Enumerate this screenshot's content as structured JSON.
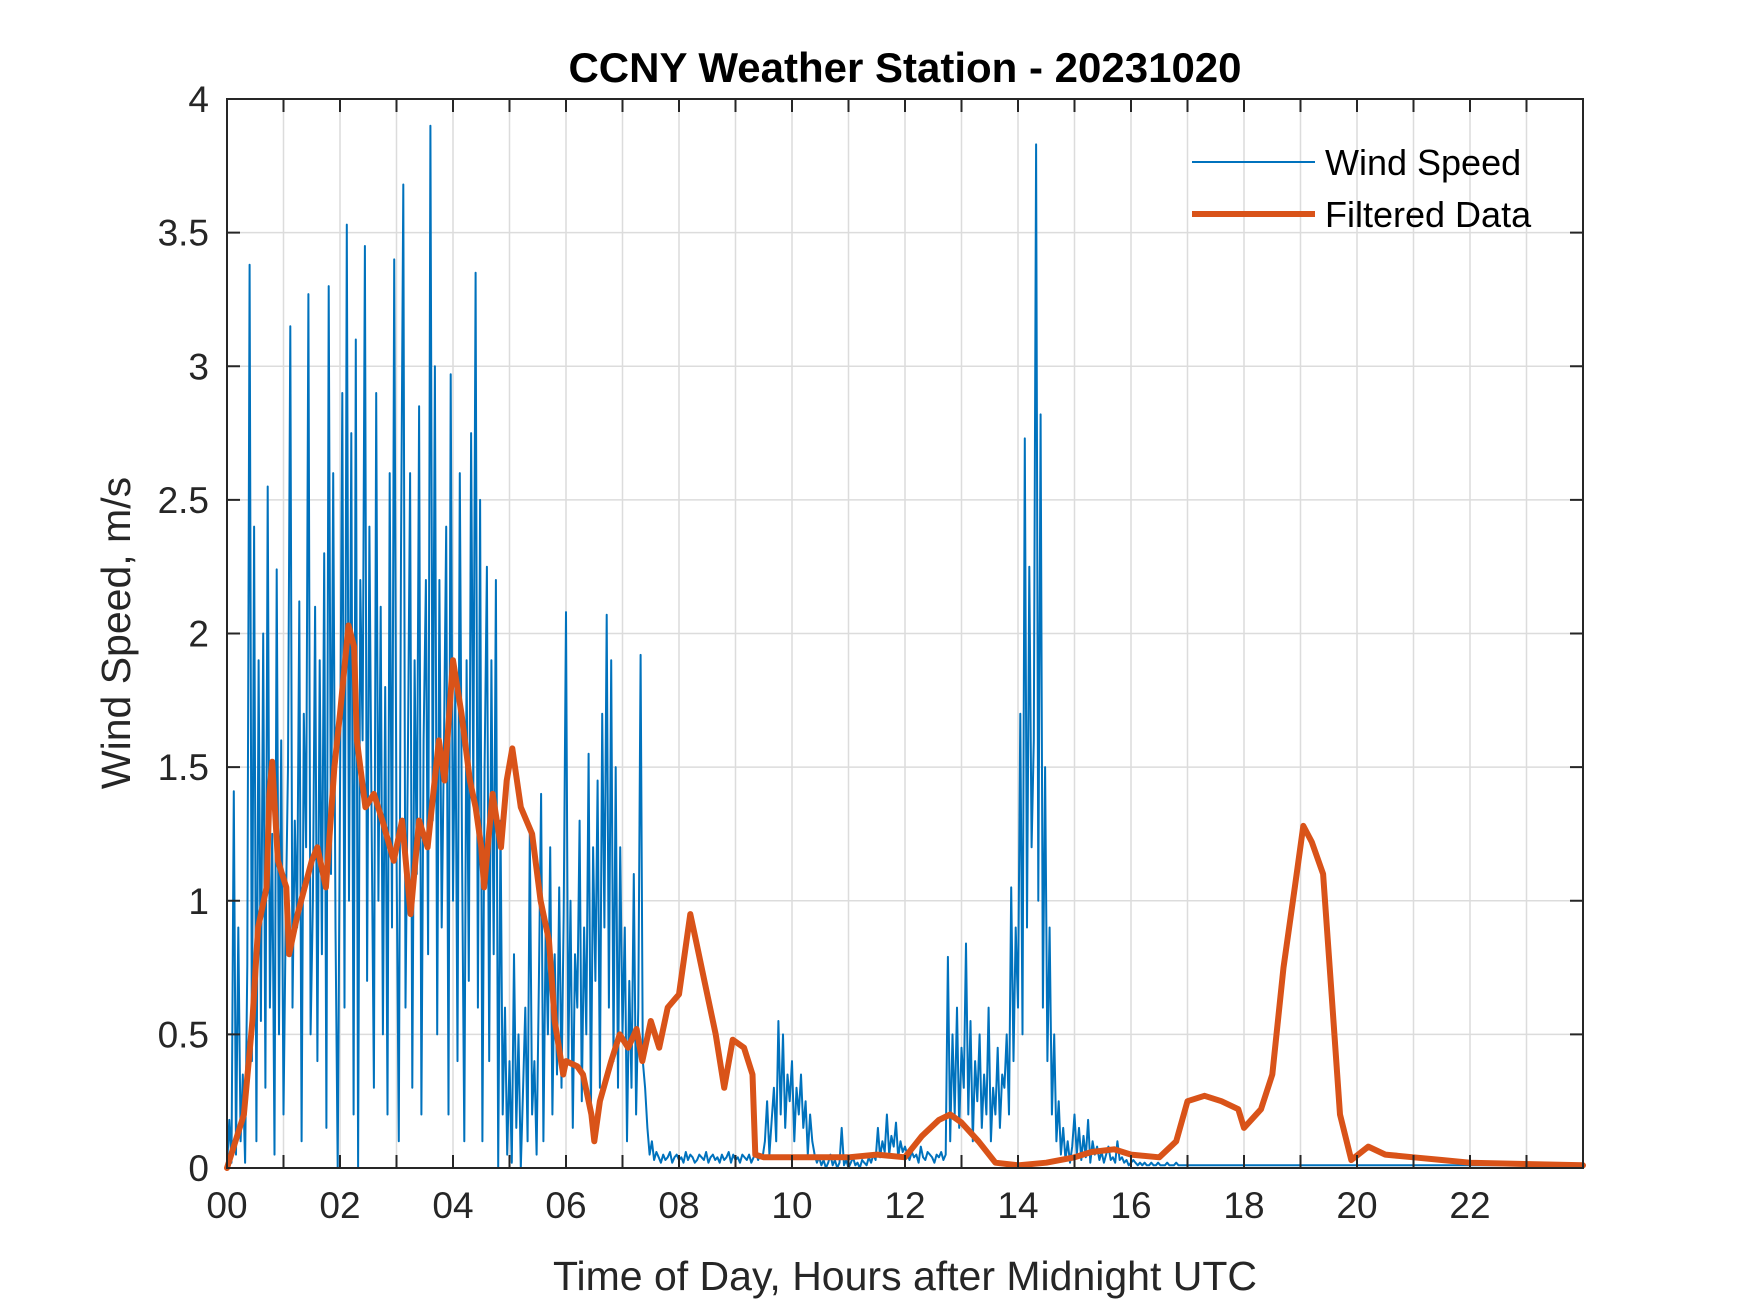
{
  "chart_data": {
    "type": "line",
    "title": "CCNY Weather Station - 20231020",
    "xlabel": "Time of Day, Hours after Midnight UTC",
    "ylabel": "Wind Speed, m/s",
    "xlim": [
      0,
      24
    ],
    "ylim": [
      0,
      4
    ],
    "xticks": [
      0,
      2,
      4,
      6,
      8,
      10,
      12,
      14,
      16,
      18,
      20,
      22
    ],
    "xtick_labels": [
      "00",
      "02",
      "04",
      "06",
      "08",
      "10",
      "12",
      "14",
      "16",
      "18",
      "20",
      "22"
    ],
    "xgrid_step_hours": 1,
    "yticks": [
      0,
      0.5,
      1,
      1.5,
      2,
      2.5,
      3,
      3.5,
      4
    ],
    "ytick_labels": [
      "0",
      "0.5",
      "1",
      "1.5",
      "2",
      "2.5",
      "3",
      "3.5",
      "4"
    ],
    "grid": true,
    "legend_position": "top-right",
    "series": [
      {
        "name": "Wind Speed",
        "color": "#0072BD",
        "x_start": 0,
        "x_step": 0.04,
        "values": [
          0.0,
          0.18,
          0.02,
          1.41,
          0.05,
          0.9,
          0.1,
          0.35,
          0.02,
          0.76,
          3.38,
          0.4,
          2.4,
          0.1,
          1.9,
          0.55,
          2.0,
          0.3,
          2.55,
          0.6,
          1.25,
          0.05,
          2.24,
          0.5,
          1.6,
          0.2,
          0.95,
          1.5,
          3.15,
          0.6,
          1.3,
          0.9,
          2.12,
          0.1,
          1.7,
          1.2,
          3.27,
          0.5,
          1.0,
          2.1,
          0.4,
          1.9,
          0.8,
          2.3,
          0.15,
          3.3,
          1.1,
          2.6,
          0.9,
          0.0,
          1.4,
          2.9,
          0.6,
          3.53,
          1.0,
          2.75,
          0.2,
          3.1,
          0.0,
          2.2,
          1.6,
          3.45,
          0.7,
          2.4,
          1.3,
          0.3,
          2.9,
          1.0,
          2.1,
          0.5,
          1.8,
          0.2,
          2.6,
          0.9,
          3.4,
          1.2,
          0.1,
          2.3,
          3.68,
          0.6,
          1.5,
          2.6,
          0.3,
          1.9,
          1.1,
          2.85,
          0.2,
          1.6,
          2.2,
          0.8,
          3.9,
          1.3,
          3.0,
          0.5,
          2.2,
          0.9,
          1.6,
          2.4,
          0.2,
          2.97,
          1.0,
          1.8,
          0.4,
          2.6,
          1.2,
          0.1,
          1.9,
          0.7,
          2.75,
          1.4,
          3.35,
          0.6,
          2.5,
          0.1,
          1.5,
          2.25,
          0.4,
          1.9,
          0.8,
          2.2,
          0.0,
          1.3,
          0.2,
          0.6,
          0.05,
          0.4,
          0.02,
          0.8,
          0.15,
          0.5,
          0.0,
          0.3,
          0.6,
          0.1,
          1.25,
          0.2,
          0.4,
          0.05,
          0.7,
          1.4,
          0.1,
          0.9,
          0.5,
          1.2,
          0.2,
          0.8,
          0.35,
          1.05,
          0.3,
          0.95,
          2.08,
          0.4,
          1.0,
          0.15,
          0.8,
          0.6,
          1.3,
          0.25,
          0.9,
          0.5,
          1.55,
          0.2,
          1.2,
          0.7,
          1.45,
          0.3,
          1.7,
          0.9,
          2.07,
          0.6,
          1.9,
          0.4,
          1.5,
          0.3,
          1.2,
          0.5,
          0.9,
          0.1,
          0.7,
          0.3,
          1.1,
          0.2,
          0.6,
          1.92,
          0.4,
          0.3,
          0.15,
          0.05,
          0.1,
          0.03,
          0.06,
          0.04,
          0.02,
          0.05,
          0.03,
          0.04,
          0.06,
          0.02,
          0.04,
          0.05,
          0.03,
          0.04,
          0.02,
          0.06,
          0.03,
          0.05,
          0.04,
          0.02,
          0.03,
          0.05,
          0.04,
          0.03,
          0.06,
          0.02,
          0.04,
          0.05,
          0.03,
          0.04,
          0.02,
          0.05,
          0.03,
          0.04,
          0.06,
          0.02,
          0.05,
          0.03,
          0.04,
          0.02,
          0.05,
          0.04,
          0.03,
          0.05,
          0.02,
          0.04,
          0.06,
          0.03,
          0.05,
          0.04,
          0.1,
          0.25,
          0.05,
          0.18,
          0.3,
          0.1,
          0.55,
          0.2,
          0.5,
          0.15,
          0.35,
          0.25,
          0.4,
          0.1,
          0.3,
          0.2,
          0.35,
          0.15,
          0.25,
          0.05,
          0.2,
          0.1,
          0.05,
          0.02,
          0.04,
          0.01,
          0.03,
          0.0,
          0.02,
          0.05,
          0.01,
          0.03,
          0.0,
          0.02,
          0.15,
          0.01,
          0.03,
          0.0,
          0.02,
          0.04,
          0.01,
          0.02,
          0.0,
          0.03,
          0.02,
          0.01,
          0.04,
          0.02,
          0.05,
          0.03,
          0.15,
          0.04,
          0.1,
          0.06,
          0.2,
          0.05,
          0.12,
          0.08,
          0.17,
          0.04,
          0.1,
          0.06,
          0.08,
          0.05,
          0.03,
          0.06,
          0.04,
          0.05,
          0.02,
          0.08,
          0.04,
          0.03,
          0.06,
          0.05,
          0.04,
          0.02,
          0.05,
          0.04,
          0.06,
          0.03,
          0.05,
          0.79,
          0.1,
          0.5,
          0.2,
          0.6,
          0.15,
          0.45,
          0.3,
          0.84,
          0.2,
          0.55,
          0.1,
          0.4,
          0.25,
          0.5,
          0.15,
          0.35,
          0.2,
          0.6,
          0.1,
          0.3,
          0.2,
          0.45,
          0.15,
          0.35,
          0.3,
          0.5,
          0.2,
          1.05,
          0.4,
          0.9,
          0.6,
          1.7,
          0.5,
          2.73,
          0.9,
          2.25,
          1.2,
          1.6,
          3.83,
          1.0,
          2.82,
          0.6,
          1.5,
          0.4,
          0.9,
          0.2,
          0.5,
          0.1,
          0.25,
          0.05,
          0.15,
          0.03,
          0.1,
          0.02,
          0.08,
          0.2,
          0.05,
          0.15,
          0.03,
          0.12,
          0.04,
          0.18,
          0.02,
          0.1,
          0.05,
          0.08,
          0.03,
          0.06,
          0.02,
          0.05,
          0.08,
          0.03,
          0.04,
          0.02,
          0.1,
          0.03,
          0.04,
          0.02,
          0.03,
          0.01,
          0.02,
          0.03,
          0.02,
          0.01,
          0.02,
          0.01,
          0.02,
          0.01,
          0.01,
          0.02,
          0.01,
          0.01,
          0.02,
          0.01,
          0.01,
          0.01,
          0.02,
          0.01,
          0.01,
          0.01,
          0.02,
          0.01,
          0.01,
          0.01,
          0.01,
          0.01,
          0.01,
          0.01,
          0.01,
          0.01,
          0.01,
          0.01,
          0.01,
          0.01,
          0.01,
          0.01,
          0.01,
          0.01,
          0.01,
          0.01,
          0.01,
          0.01,
          0.01,
          0.01,
          0.01,
          0.01,
          0.01,
          0.01,
          0.01,
          0.01,
          0.01,
          0.01,
          0.01,
          0.01,
          0.01,
          0.01,
          0.01,
          0.01,
          0.01,
          0.01,
          0.01,
          0.01,
          0.01,
          0.01,
          0.01,
          0.01,
          0.01,
          0.01,
          0.01,
          0.01,
          0.01,
          0.01,
          0.01,
          0.01,
          0.01,
          0.01,
          0.01,
          0.01,
          0.01,
          0.01,
          0.01,
          0.01,
          0.01,
          0.01,
          0.01,
          0.01,
          0.01,
          0.01,
          0.01,
          0.01,
          0.01,
          0.01,
          0.01,
          0.01,
          0.01,
          0.01,
          0.01,
          0.01,
          0.01,
          0.01,
          0.01,
          0.01,
          0.01,
          0.01,
          0.01,
          0.01,
          0.01,
          0.01,
          0.01,
          0.01,
          0.01,
          0.01,
          0.01,
          0.01,
          0.01,
          0.01,
          0.01,
          0.01,
          0.01,
          0.01,
          0.01,
          0.01,
          0.01,
          0.01,
          0.01,
          0.01,
          0.01,
          0.01,
          0.01,
          0.01,
          0.01,
          0.01,
          0.01,
          0.01,
          0.01,
          0.01,
          0.01,
          0.01,
          0.01,
          0.01,
          0.01,
          0.01,
          0.01,
          0.01,
          0.01,
          0.01,
          0.01,
          0.01,
          0.01,
          0.01,
          0.01,
          0.01,
          0.01,
          0.01,
          0.01,
          0.01,
          0.01,
          0.01,
          0.01,
          0.01,
          0.01,
          0.01,
          0.01,
          0.01,
          0.01,
          0.01,
          0.01,
          0.01,
          0.01,
          0.01,
          0.01,
          0.01
        ]
      },
      {
        "name": "Filtered Data",
        "color": "#D95319",
        "x": [
          0,
          0.3,
          0.45,
          0.55,
          0.7,
          0.75,
          0.8,
          0.9,
          1.05,
          1.1,
          1.25,
          1.5,
          1.6,
          1.75,
          1.9,
          2.0,
          2.15,
          2.25,
          2.3,
          2.45,
          2.6,
          2.75,
          2.95,
          3.1,
          3.25,
          3.4,
          3.55,
          3.75,
          3.85,
          4.0,
          4.15,
          4.3,
          4.4,
          4.5,
          4.55,
          4.7,
          4.85,
          4.95,
          5.05,
          5.2,
          5.4,
          5.55,
          5.7,
          5.8,
          5.95,
          6.0,
          6.2,
          6.3,
          6.45,
          6.5,
          6.6,
          6.8,
          6.95,
          7.1,
          7.25,
          7.35,
          7.5,
          7.65,
          7.8,
          8.0,
          8.2,
          8.3,
          8.45,
          8.65,
          8.8,
          8.95,
          9.15,
          9.3,
          9.35,
          9.5,
          11.0,
          11.5,
          12.0,
          12.3,
          12.6,
          12.8,
          13.0,
          13.3,
          13.6,
          14.0,
          14.5,
          15.0,
          15.3,
          15.7,
          16.0,
          16.5,
          16.8,
          17.0,
          17.3,
          17.6,
          17.9,
          18.0,
          18.3,
          18.5,
          18.7,
          18.9,
          19.05,
          19.2,
          19.4,
          19.55,
          19.7,
          19.9,
          20.2,
          20.5,
          21.0,
          21.5,
          22.0,
          24.0
        ],
        "y": [
          0,
          0.2,
          0.55,
          0.9,
          1.05,
          1.4,
          1.52,
          1.15,
          1.05,
          0.8,
          0.95,
          1.15,
          1.2,
          1.05,
          1.5,
          1.7,
          2.03,
          1.95,
          1.6,
          1.35,
          1.4,
          1.3,
          1.15,
          1.3,
          0.95,
          1.3,
          1.2,
          1.6,
          1.45,
          1.9,
          1.7,
          1.45,
          1.35,
          1.2,
          1.05,
          1.4,
          1.2,
          1.45,
          1.57,
          1.35,
          1.25,
          1.0,
          0.85,
          0.55,
          0.35,
          0.4,
          0.38,
          0.35,
          0.2,
          0.1,
          0.25,
          0.4,
          0.5,
          0.45,
          0.52,
          0.4,
          0.55,
          0.45,
          0.6,
          0.65,
          0.95,
          0.85,
          0.7,
          0.5,
          0.3,
          0.48,
          0.45,
          0.35,
          0.05,
          0.04,
          0.04,
          0.05,
          0.04,
          0.12,
          0.18,
          0.2,
          0.17,
          0.1,
          0.02,
          0.01,
          0.02,
          0.04,
          0.06,
          0.07,
          0.05,
          0.04,
          0.1,
          0.25,
          0.27,
          0.25,
          0.22,
          0.15,
          0.22,
          0.35,
          0.75,
          1.05,
          1.28,
          1.22,
          1.1,
          0.65,
          0.2,
          0.03,
          0.08,
          0.05,
          0.04,
          0.03,
          0.02,
          0.01
        ]
      }
    ]
  }
}
